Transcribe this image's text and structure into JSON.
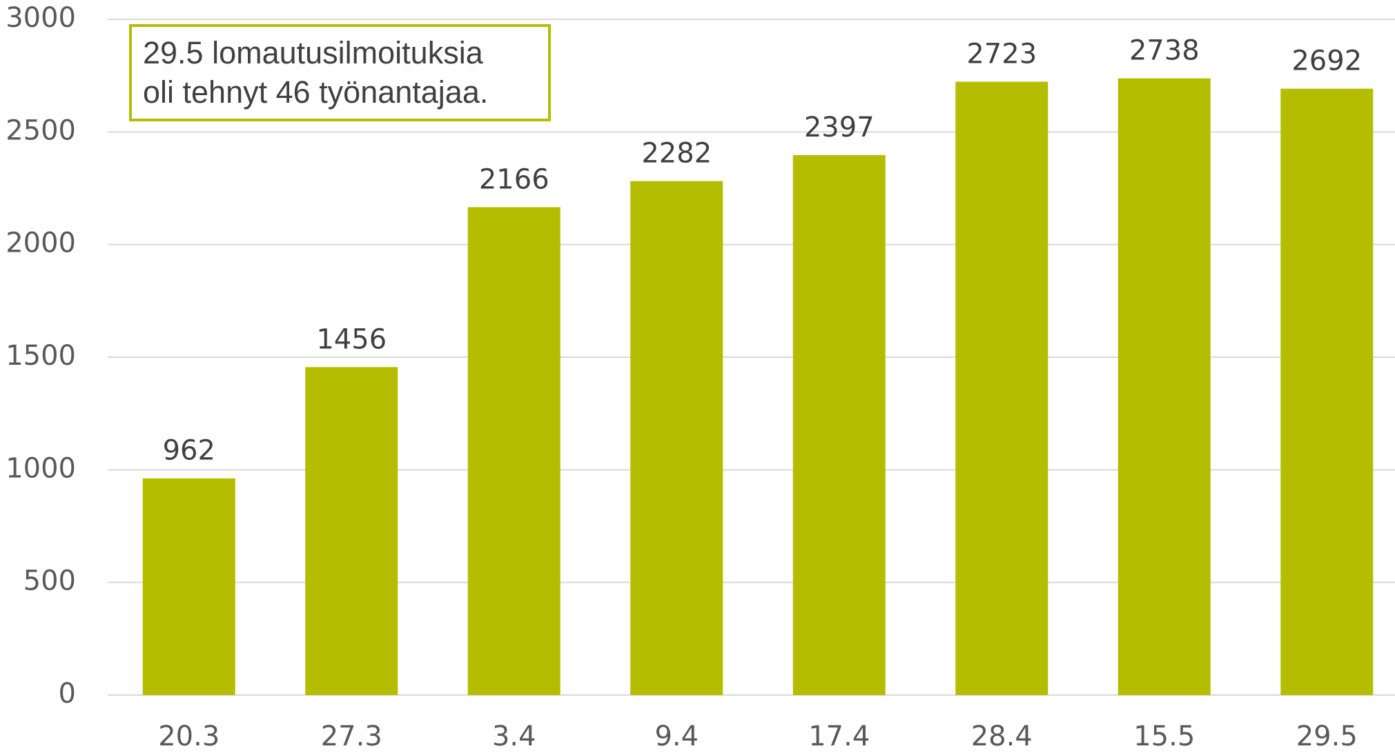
{
  "chart_data": {
    "type": "bar",
    "annotation": [
      "29.5 lomautusilmoituksia",
      "oli tehnyt 46 työnantajaa."
    ],
    "categories": [
      "20.3",
      "27.3",
      "3.4",
      "9.4",
      "17.4",
      "28.4",
      "15.5",
      "29.5"
    ],
    "values": [
      962,
      1456,
      2166,
      2282,
      2397,
      2723,
      2738,
      2692
    ],
    "color": "#b5bd00",
    "ylim": [
      0,
      3000
    ],
    "yticks": [
      0,
      500,
      1000,
      1500,
      2000,
      2500,
      3000
    ],
    "grid": true
  }
}
